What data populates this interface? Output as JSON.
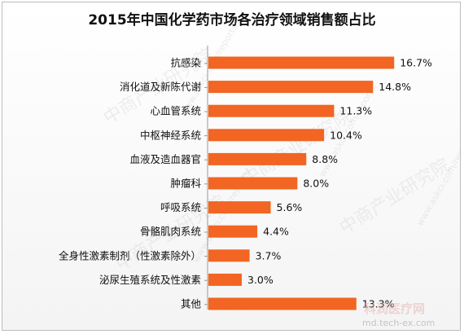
{
  "chart_data": {
    "type": "bar",
    "orientation": "horizontal",
    "title": "2015年中国化学药市场各治疗领域销售额占比",
    "categories": [
      "抗感染",
      "消化道及新陈代谢",
      "心血管系统",
      "中枢神经系统",
      "血液及造血器官",
      "肿瘤科",
      "呼吸系统",
      "骨骼肌肉系统",
      "全身性激素制剂（性激素除外）",
      "泌尿生殖系统及性激素",
      "其他"
    ],
    "values": [
      16.7,
      14.8,
      11.3,
      10.4,
      8.8,
      8.0,
      5.6,
      4.4,
      3.7,
      3.0,
      13.3
    ],
    "value_labels": [
      "16.7%",
      "14.8%",
      "11.3%",
      "10.4%",
      "8.8%",
      "8.0%",
      "5.6%",
      "4.4%",
      "3.7%",
      "3.0%",
      "13.3%"
    ],
    "xlim": [
      0,
      18
    ],
    "grid": false,
    "legend": "none",
    "bar_color": "#f26522"
  },
  "watermark": {
    "brand": "中商产业研究院",
    "url": "www.askci.com/reports/"
  },
  "corner_mark": {
    "text": "科润医疗网",
    "url": "md.tech-ex.com"
  }
}
